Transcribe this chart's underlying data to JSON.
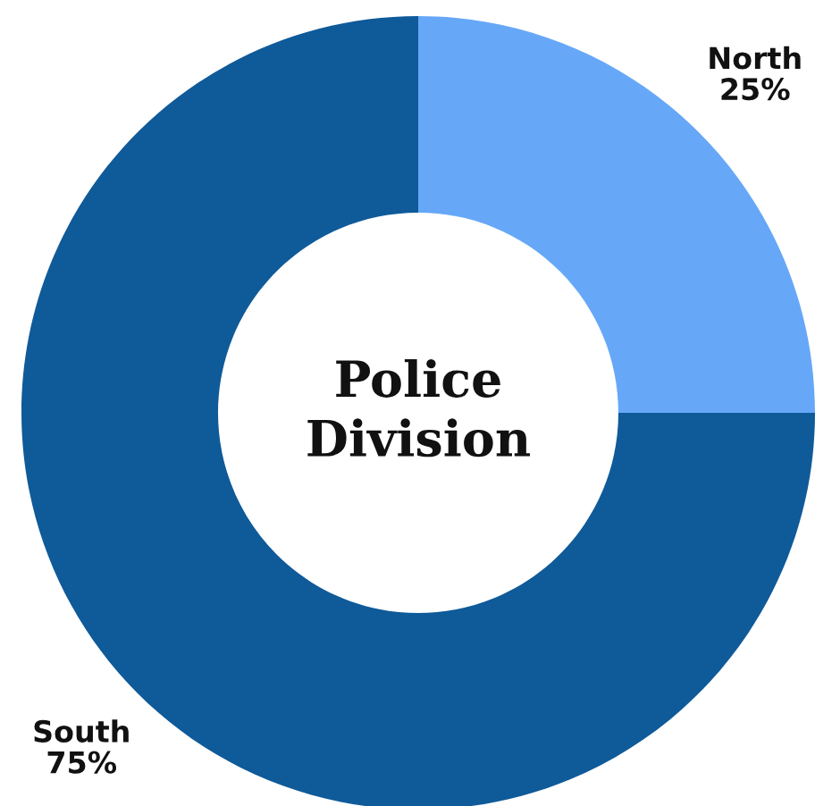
{
  "chart_data": {
    "type": "donut",
    "title": "Police\nDivision",
    "categories": [
      "North",
      "South"
    ],
    "values": [
      25,
      75
    ],
    "colors": [
      "#66a8f7",
      "#0f5a99"
    ],
    "value_labels": [
      "25%",
      "75%"
    ],
    "legend": false
  }
}
